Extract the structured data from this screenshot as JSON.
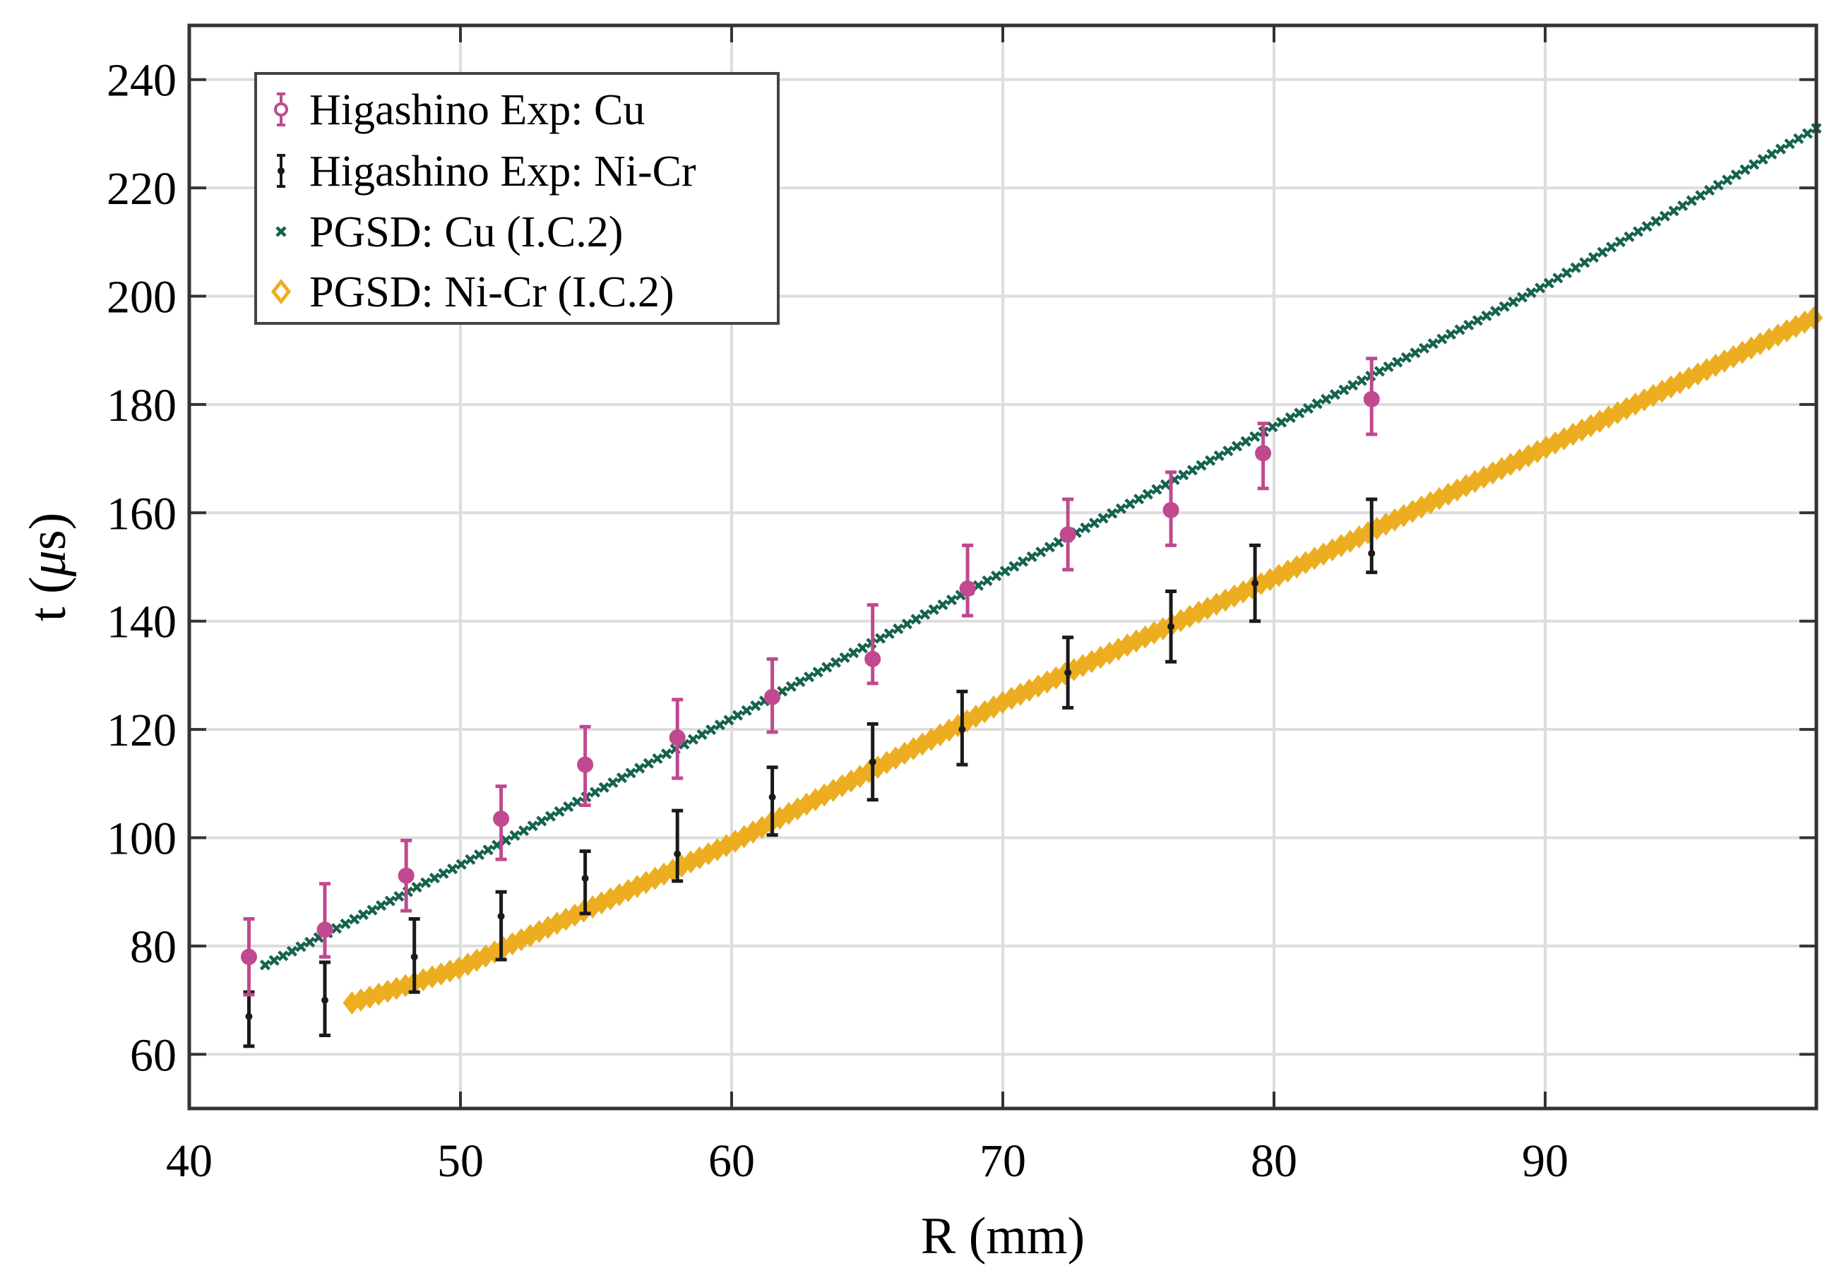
{
  "chart_data": {
    "type": "scatter",
    "title": "",
    "xlabel": "R (mm)",
    "ylabel_prefix": "t (",
    "ylabel_symbol": "μ",
    "ylabel_suffix": "s)",
    "xlim": [
      40,
      100
    ],
    "ylim": [
      50,
      250
    ],
    "xticks": [
      40,
      50,
      60,
      70,
      80,
      90
    ],
    "yticks": [
      60,
      80,
      100,
      120,
      140,
      160,
      180,
      200,
      220,
      240
    ],
    "grid": true,
    "legend_position": "top-left",
    "colors": {
      "cu_exp": "#c0498f",
      "nicr_exp": "#1a1a1a",
      "cu_pgsd": "#15634f",
      "nicr_pgsd": "#ecae20",
      "grid": "#dddddd",
      "axis": "#333333"
    },
    "series": [
      {
        "name": "Higashino Exp: Cu",
        "kind": "errorbar",
        "marker": "circle",
        "color": "#c0498f",
        "x": [
          42.2,
          45.0,
          48.0,
          51.5,
          54.6,
          58.0,
          61.5,
          65.2,
          68.7,
          72.4,
          76.2,
          79.6,
          83.6
        ],
        "y": [
          78,
          83,
          93,
          103.5,
          113.5,
          118.5,
          126,
          133,
          146,
          156,
          160.5,
          171,
          181
        ],
        "err_low": [
          7,
          5,
          6.5,
          7.5,
          7.5,
          7.5,
          6.5,
          4.5,
          5,
          6.5,
          6.5,
          6.5,
          6.5
        ],
        "err_high": [
          7,
          8.5,
          6.5,
          6,
          7,
          7,
          7,
          10,
          8,
          6.5,
          7,
          5.5,
          7.5
        ]
      },
      {
        "name": "Higashino Exp: Ni-Cr",
        "kind": "errorbar",
        "marker": "dot",
        "color": "#1a1a1a",
        "x": [
          42.2,
          45.0,
          48.3,
          51.5,
          54.6,
          58.0,
          61.5,
          65.2,
          68.5,
          72.4,
          76.2,
          79.3,
          83.6
        ],
        "y": [
          67,
          70,
          78,
          85.5,
          92.5,
          97,
          107.5,
          114,
          120,
          130.5,
          139,
          147,
          152.5
        ],
        "err_low": [
          5.5,
          6.5,
          6.5,
          8,
          6.5,
          5,
          7,
          7,
          6.5,
          6.5,
          6.5,
          7,
          3.5
        ],
        "err_high": [
          4.5,
          7,
          7,
          4.5,
          5,
          8,
          5.5,
          7,
          7,
          6.5,
          6.5,
          7,
          10
        ]
      },
      {
        "name": "PGSD: Cu (I.C.2)",
        "kind": "curve",
        "marker": "x",
        "color": "#15634f",
        "x_start": 42.8,
        "x_end": 100,
        "anchors_x": [
          42.8,
          50,
          60,
          70,
          80,
          90,
          100
        ],
        "anchors_y": [
          76.5,
          95,
          122,
          149,
          176,
          202,
          231
        ]
      },
      {
        "name": "PGSD: Ni-Cr (I.C.2)",
        "kind": "curve",
        "marker": "diamond",
        "color": "#ecae20",
        "x_start": 46.0,
        "x_end": 99.9,
        "anchors_x": [
          46,
          50,
          60,
          70,
          80,
          90,
          99.9
        ],
        "anchors_y": [
          69.5,
          76,
          99,
          125,
          148,
          172,
          196
        ]
      }
    ]
  }
}
